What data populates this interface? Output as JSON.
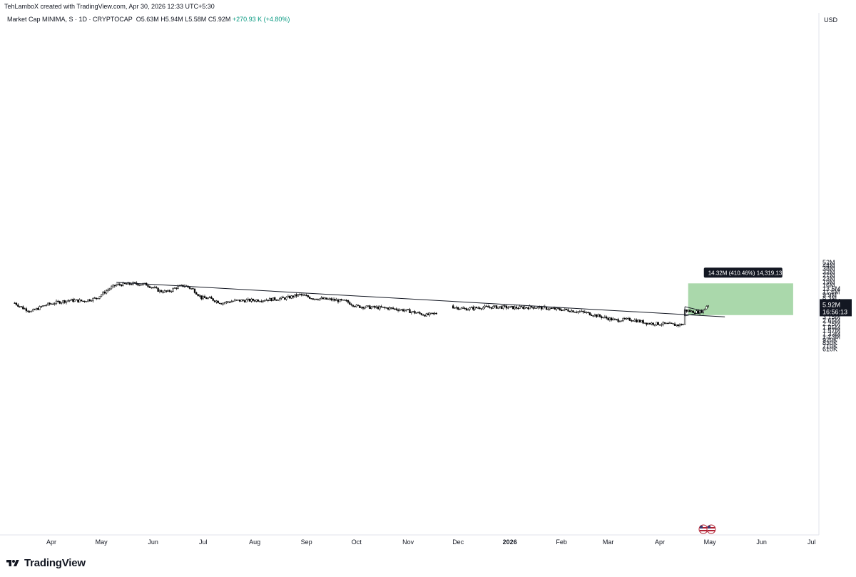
{
  "attribution": "TehLamboX created with TradingView.com, Apr 30, 2026 12:33 UTC+5:30",
  "legend": {
    "symbol": "Market Cap MINIMA, S · 1D · CRYPTOCAP",
    "open": "O5.63M",
    "high": "H5.94M",
    "low": "L5.58M",
    "close": "C5.92M",
    "change": "+270.93 K (+4.80%)"
  },
  "currency": "USD",
  "brand": "TradingView",
  "colors": {
    "up": "#089981",
    "down": "#000000",
    "profit_zone": "#a5d6a7",
    "trendline": "#131722",
    "price_label_bg": "#131722"
  },
  "chart_data": {
    "type": "candlestick",
    "scale": "log",
    "y_ticks": [
      "52M",
      "44M",
      "38M",
      "32M",
      "27M",
      "23M",
      "19M",
      "16M",
      "13.5M",
      "11.5M",
      "9.9M",
      "8.3M",
      "7.05M",
      "5.88M",
      "5.53M",
      "4.25M",
      "3.65M",
      "3.15M",
      "2.65M",
      "2.25M",
      "1.85M",
      "1.57M",
      "1.33M",
      "1.13M",
      "970K",
      "830K",
      "710K",
      "610K"
    ],
    "x_ticks": [
      "Apr",
      "May",
      "Jun",
      "Jul",
      "Aug",
      "Sep",
      "Oct",
      "Nov",
      "Dec",
      "2026",
      "Feb",
      "Mar",
      "Apr",
      "May",
      "Jun",
      "Jul"
    ],
    "current_price": {
      "value": "5.92M",
      "countdown": "16:56:13"
    },
    "measure_label": "14.32M (410.46%) 14,319,131",
    "trendline": {
      "from": {
        "date": "2025-05-10",
        "value": 18.8
      },
      "to": {
        "date": "2026-05-10",
        "value": 3.2
      }
    },
    "profit_zone": {
      "from_date": "2026-04-18",
      "to_date": "2026-06-20",
      "low": 3.5,
      "high": 17.8
    },
    "price_path_millions": [
      [
        "2025-03-10",
        6.5
      ],
      [
        "2025-03-15",
        5.0
      ],
      [
        "2025-03-20",
        4.2
      ],
      [
        "2025-03-28",
        5.8
      ],
      [
        "2025-04-05",
        6.8
      ],
      [
        "2025-04-12",
        7.5
      ],
      [
        "2025-04-20",
        7.2
      ],
      [
        "2025-04-28",
        8.3
      ],
      [
        "2025-05-05",
        13.0
      ],
      [
        "2025-05-10",
        16.5
      ],
      [
        "2025-05-20",
        17.5
      ],
      [
        "2025-05-28",
        16.8
      ],
      [
        "2025-06-05",
        12.0
      ],
      [
        "2025-06-10",
        11.5
      ],
      [
        "2025-06-15",
        14.5
      ],
      [
        "2025-06-20",
        16.0
      ],
      [
        "2025-06-25",
        13.0
      ],
      [
        "2025-06-30",
        8.5
      ],
      [
        "2025-07-05",
        8.2
      ],
      [
        "2025-07-12",
        6.5
      ],
      [
        "2025-07-20",
        7.3
      ],
      [
        "2025-08-01",
        7.5
      ],
      [
        "2025-08-10",
        7.8
      ],
      [
        "2025-08-20",
        8.4
      ],
      [
        "2025-08-28",
        10.0
      ],
      [
        "2025-09-05",
        8.3
      ],
      [
        "2025-09-15",
        7.8
      ],
      [
        "2025-09-25",
        7.0
      ],
      [
        "2025-10-01",
        5.5
      ],
      [
        "2025-10-10",
        5.2
      ],
      [
        "2025-10-20",
        5.0
      ],
      [
        "2025-10-30",
        4.5
      ],
      [
        "2025-11-05",
        4.0
      ],
      [
        "2025-11-12",
        3.5
      ],
      [
        "2025-11-18",
        3.8
      ],
      [
        "2025-11-27",
        5.4
      ],
      [
        "2025-12-05",
        4.8
      ],
      [
        "2025-12-15",
        5.2
      ],
      [
        "2025-12-25",
        5.3
      ],
      [
        "2026-01-05",
        5.1
      ],
      [
        "2026-01-15",
        5.3
      ],
      [
        "2026-01-25",
        4.9
      ],
      [
        "2026-02-05",
        4.5
      ],
      [
        "2026-02-15",
        4.0
      ],
      [
        "2026-02-25",
        3.2
      ],
      [
        "2026-03-05",
        2.7
      ],
      [
        "2026-03-15",
        2.8
      ],
      [
        "2026-03-25",
        2.3
      ],
      [
        "2026-04-05",
        2.2
      ],
      [
        "2026-04-12",
        2.1
      ],
      [
        "2026-04-15",
        2.2
      ],
      [
        "2026-04-16",
        4.5
      ],
      [
        "2026-04-20",
        4.2
      ],
      [
        "2026-04-24",
        4.1
      ],
      [
        "2026-04-27",
        4.4
      ],
      [
        "2026-04-29",
        5.6
      ],
      [
        "2026-04-30",
        5.92
      ]
    ]
  }
}
